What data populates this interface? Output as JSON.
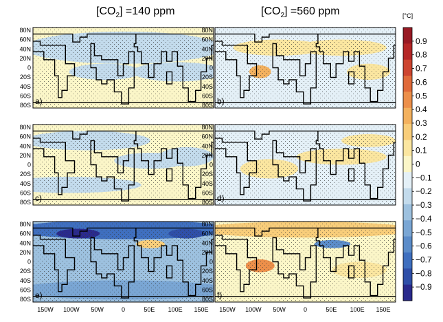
{
  "titles": {
    "left": {
      "pre": "[CO",
      "sub": "2",
      "post": "] =140 ppm"
    },
    "right": {
      "pre": "[CO",
      "sub": "2",
      "post": "] =560 ppm"
    }
  },
  "colorbar": {
    "unit": "[°C]",
    "ticks": [
      "0.9",
      "0.8",
      "0.7",
      "0.6",
      "0.5",
      "0.4",
      "0.3",
      "0.2",
      "0.1",
      "0",
      "−0.1",
      "−0.2",
      "−0.3",
      "−0.4",
      "−0.5",
      "−0.6",
      "−0.7",
      "−0.8",
      "−0.9"
    ],
    "range": [
      -1.0,
      1.0
    ],
    "colors": [
      "#2a2a8c",
      "#2f4fa8",
      "#3f6fbf",
      "#5b8cc9",
      "#7aa6d4",
      "#9dc1df",
      "#c3dbec",
      "#e4f0f7",
      "#fbf6c8",
      "#fbe6a0",
      "#f8cd7a",
      "#f3b15e",
      "#ec8f4a",
      "#e06a3a",
      "#cd4530",
      "#b52727",
      "#981a24"
    ]
  },
  "x_ticks": [
    "150W",
    "100W",
    "50W",
    "0",
    "50E",
    "100E",
    "150E"
  ],
  "y_ticks": [
    "80N",
    "60N",
    "40N",
    "20N",
    "0",
    "20S",
    "40S",
    "60S",
    "80S"
  ],
  "panels": [
    {
      "label": "a)",
      "base": "#fbf6c8"
    },
    {
      "label": "b)",
      "base": "#e4f0f7"
    },
    {
      "label": "c)",
      "base": "#fbf6c8"
    },
    {
      "label": "d)",
      "base": "#e4f0f7"
    },
    {
      "label": "e)",
      "base": "#9dc1df"
    },
    {
      "label": "f)",
      "base": "#fbf6c8"
    }
  ]
}
